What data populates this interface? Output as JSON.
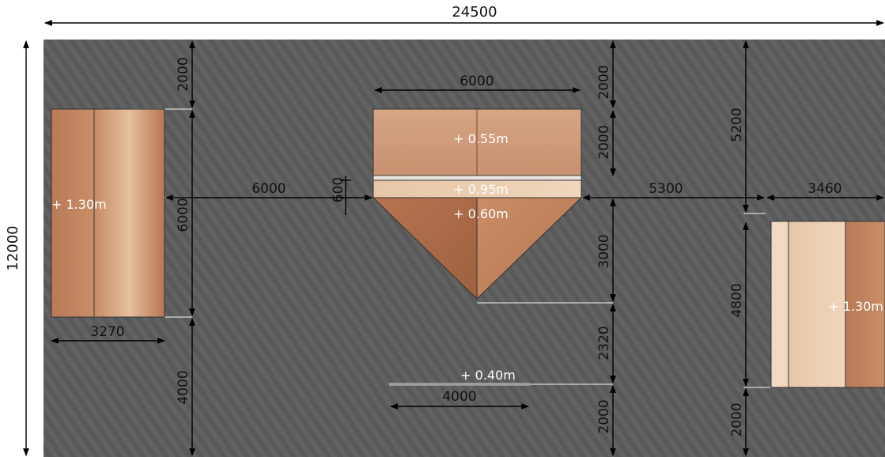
{
  "overall": {
    "width_label": "24500",
    "height_label": "12000"
  },
  "dimensions": {
    "top_left_gap": "2000",
    "left_obstacle_height": "6000",
    "left_bottom_gap": "4000",
    "left_obstacle_width": "3270",
    "left_to_center": "6000",
    "center_width": "6000",
    "center_top_gap": "2000",
    "center_box_depth": "2000",
    "center_step_depth": "600",
    "center_triangle_depth": "3000",
    "center_to_rail": "2320",
    "rail_bottom_gap": "2000",
    "rail_length": "4000",
    "center_to_right": "5300",
    "right_top_gap": "5200",
    "right_obstacle_height": "4800",
    "right_bottom_gap": "2000",
    "right_obstacle_width": "3460"
  },
  "elevations": {
    "left_obstacle": "+ 1.30m",
    "center_box": "+ 0.55m",
    "center_step": "+ 0.95m",
    "center_triangle": "+ 0.60m",
    "rail": "+ 0.40m",
    "right_obstacle": "+ 1.30m"
  },
  "colors": {
    "ground": "#5a5a5a",
    "wood_light": "#d9a684",
    "wood_mid": "#c48763",
    "wood_dark": "#a86a4a"
  }
}
